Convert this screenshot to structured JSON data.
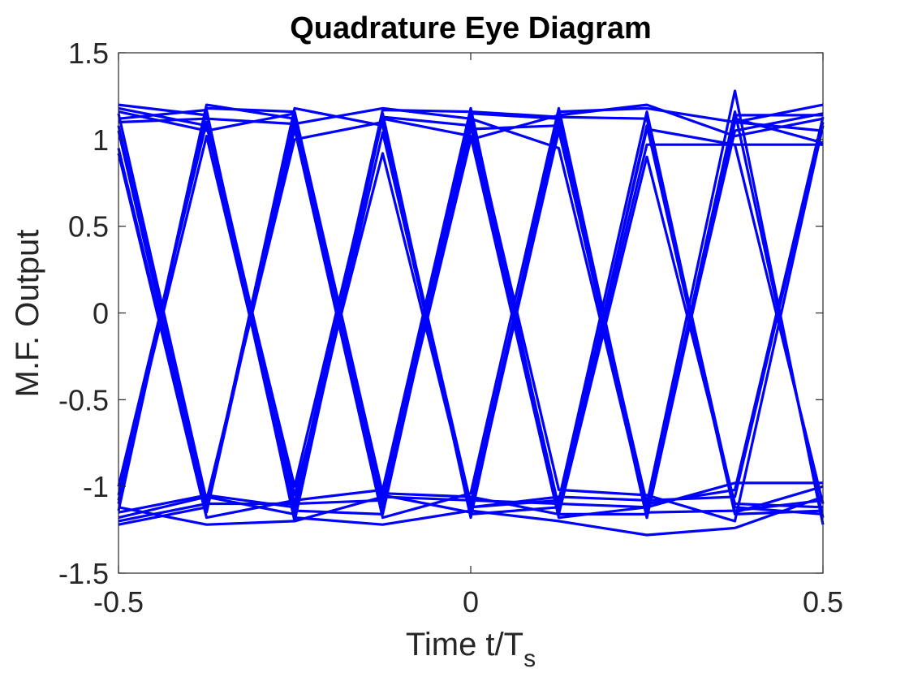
{
  "chart_data": {
    "type": "line",
    "title": "Quadrature Eye Diagram",
    "xlabel_main": "Time t/T",
    "xlabel_sub": "s",
    "ylabel": "M.F. Output",
    "xlim": [
      -0.5,
      0.5
    ],
    "ylim": [
      -1.5,
      1.5
    ],
    "xticks": [
      -0.5,
      0,
      0.5
    ],
    "xtick_labels": [
      "-0.5",
      "0",
      "0.5"
    ],
    "yticks": [
      -1.5,
      -1,
      -0.5,
      0,
      0.5,
      1,
      1.5
    ],
    "ytick_labels": [
      "-1.5",
      "-1",
      "-0.5",
      "0",
      "0.5",
      "1",
      "1.5"
    ],
    "grid": false,
    "line_color": "#0000ff",
    "x": [
      -0.5,
      -0.375,
      -0.25,
      -0.125,
      0,
      0.125,
      0.25,
      0.375,
      0.5
    ],
    "traces": [
      [
        1.12,
        1.17,
        -1.2,
        1.13,
        1.08,
        -1.12,
        1.06,
        0.97,
        -1.1
      ],
      [
        -1.05,
        1.02,
        -1.1,
        -1.08,
        1.15,
        1.12,
        -1.18,
        1.1,
        1.05
      ],
      [
        0.95,
        -1.15,
        1.1,
        -1.05,
        -1.15,
        1.05,
        -1.1,
        -1.02,
        1.13
      ],
      [
        1.2,
        1.14,
        -1.05,
        0.92,
        -1.12,
        -1.08,
        1.16,
        -1.15,
        -1.0
      ],
      [
        -1.2,
        -1.1,
        1.06,
        -1.18,
        -1.04,
        1.18,
        -1.14,
        1.16,
        -1.18
      ],
      [
        1.18,
        1.08,
        -1.0,
        1.12,
        1.02,
        -1.18,
        -1.12,
        1.05,
        1.15
      ],
      [
        -1.1,
        1.2,
        1.12,
        -1.14,
        1.14,
        -1.02,
        -1.05,
        -1.2,
        1.08
      ],
      [
        -1.15,
        -1.05,
        -1.12,
        1.15,
        -1.18,
        1.16,
        1.18,
        1.1,
        1.2
      ],
      [
        0.92,
        -1.18,
        -1.08,
        -1.02,
        1.18,
        -1.16,
        0.9,
        -1.1,
        -1.12
      ],
      [
        -1.0,
        1.1,
        -1.18,
        -1.22,
        -1.14,
        -1.2,
        -1.28,
        -1.24,
        -1.06
      ],
      [
        1.15,
        -1.08,
        1.0,
        1.1,
        -1.1,
        1.1,
        -1.1,
        1.28,
        -1.22
      ],
      [
        -1.22,
        -1.12,
        1.14,
        -1.1,
        1.0,
        1.14,
        1.2,
        1.02,
        1.12
      ],
      [
        1.1,
        1.12,
        1.09,
        1.18,
        1.12,
        0.95,
        -1.15,
        -1.14,
        -1.08
      ],
      [
        -1.12,
        -1.22,
        -1.2,
        -1.06,
        -1.08,
        -1.1,
        -1.12,
        -0.98,
        -0.98
      ],
      [
        1.05,
        -1.14,
        1.18,
        1.08,
        -1.16,
        -1.12,
        0.97,
        0.97,
        0.97
      ],
      [
        -1.08,
        1.16,
        -1.14,
        -1.16,
        1.1,
        -1.14,
        1.08,
        -1.16,
        -1.14
      ],
      [
        1.16,
        1.05,
        1.15,
        -1.12,
        1.06,
        1.08,
        -1.18,
        1.12,
        0.98
      ],
      [
        -1.18,
        -1.06,
        -1.16,
        1.04,
        -1.12,
        -1.06,
        -1.08,
        -1.06,
        1.1
      ],
      [
        1.08,
        -1.1,
        -1.1,
        1.17,
        1.16,
        1.13,
        1.12,
        -1.12,
        -1.16
      ],
      [
        -1.14,
        1.18,
        1.16,
        -1.04,
        -1.06,
        -1.16,
        -1.16,
        1.14,
        1.14
      ]
    ]
  }
}
